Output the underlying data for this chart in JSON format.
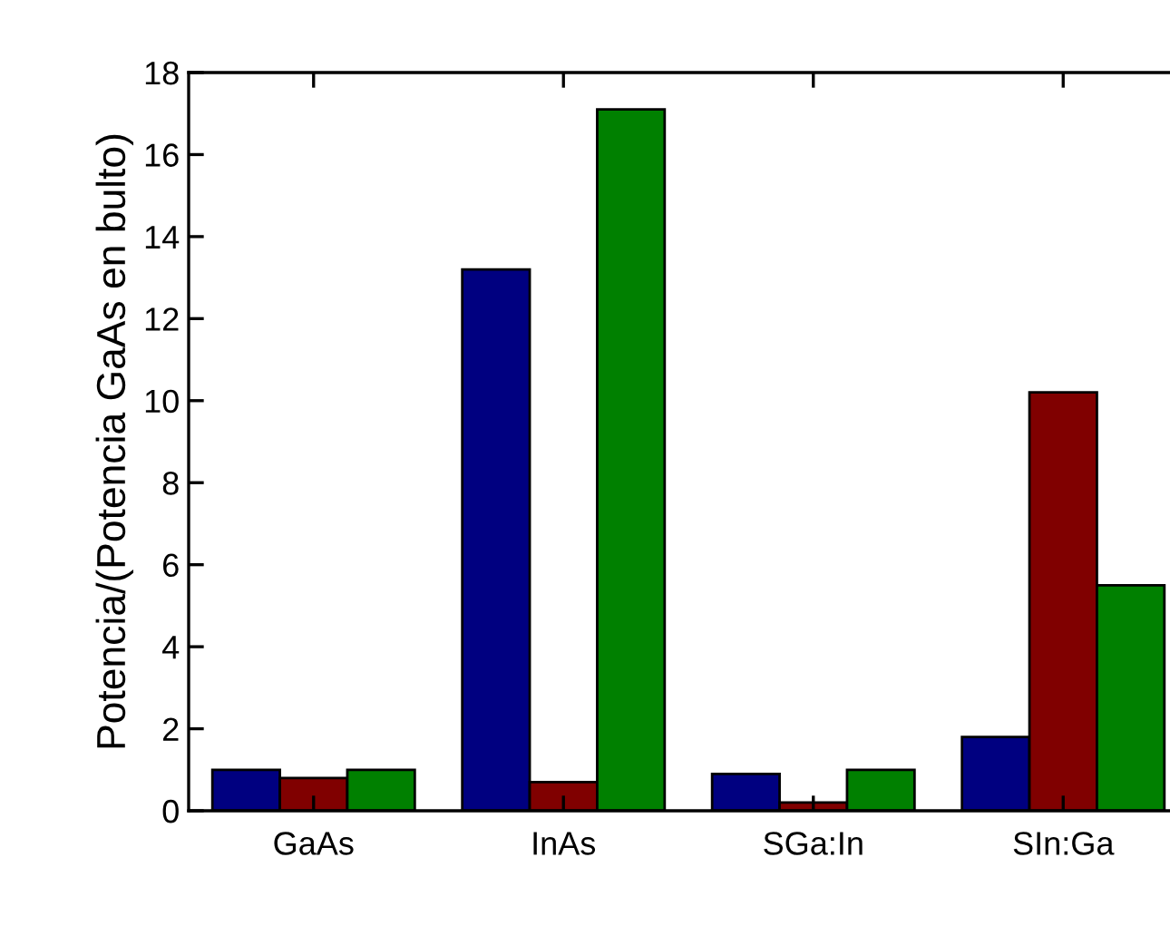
{
  "chart_data": {
    "type": "bar",
    "ylabel": "Potencia/(Potencia GaAs en bulto)",
    "categories": [
      "GaAs",
      "InAs",
      "SGa:In",
      "SIn:Ga"
    ],
    "series": [
      {
        "color": "#000080",
        "values": [
          1.0,
          13.2,
          0.9,
          1.8
        ]
      },
      {
        "color": "#800000",
        "values": [
          0.8,
          0.7,
          0.2,
          10.2
        ]
      },
      {
        "color": "#008000",
        "values": [
          1.0,
          17.1,
          1.0,
          5.5
        ]
      }
    ],
    "ylim": [
      0,
      18
    ],
    "yticks": [
      0,
      2,
      4,
      6,
      8,
      10,
      12,
      14,
      16,
      18
    ],
    "grid": false,
    "legend": false
  }
}
